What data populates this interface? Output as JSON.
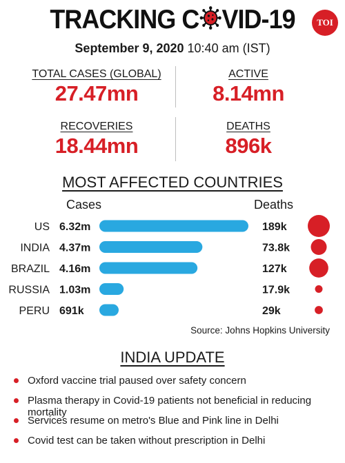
{
  "header": {
    "title_left": "TRACKING C",
    "title_right": "VID-19",
    "badge": "TOI",
    "date": "September 9, 2020",
    "time": "10:40 am (IST)"
  },
  "stats": [
    {
      "label": "TOTAL CASES (GLOBAL)",
      "value": "27.47mn"
    },
    {
      "label": "ACTIVE",
      "value": "8.14mn"
    },
    {
      "label": "RECOVERIES",
      "value": "18.44mn"
    },
    {
      "label": "DEATHS",
      "value": "896k"
    }
  ],
  "chart_title": "MOST AFFECTED COUNTRIES",
  "chart_data": {
    "type": "bar",
    "orientation": "horizontal",
    "title": "MOST AFFECTED COUNTRIES",
    "columns": {
      "cases": "Cases",
      "deaths": "Deaths"
    },
    "categories": [
      "US",
      "INDIA",
      "BRAZIL",
      "RUSSIA",
      "PERU"
    ],
    "series": [
      {
        "name": "Cases",
        "values": [
          6.32,
          4.37,
          4.16,
          1.03,
          0.691
        ],
        "labels": [
          "6.32m",
          "4.37m",
          "4.16m",
          "1.03m",
          "691k"
        ],
        "unit": "million",
        "color": "#29a8e0"
      },
      {
        "name": "Deaths",
        "values": [
          189,
          73.8,
          127,
          17.9,
          29
        ],
        "labels": [
          "189k",
          "73.8k",
          "127k",
          "17.9k",
          "29k"
        ],
        "unit": "thousand",
        "color": "#d71f26"
      }
    ]
  },
  "source": "Source: Johns Hopkins University",
  "update_title": "INDIA UPDATE",
  "updates": [
    "Oxford vaccine trial paused over safety concern",
    "Plasma therapy in Covid-19 patients not beneficial in reducing mortality",
    "Services resume on metro's Blue and Pink line in Delhi",
    "Covid test can be taken without prescription in Delhi"
  ],
  "colors": {
    "accent": "#d71f26",
    "bar": "#29a8e0",
    "text": "#1a1a1a"
  }
}
